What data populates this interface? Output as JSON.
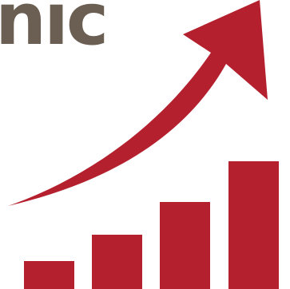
{
  "logo": {
    "text_fragment": "nic",
    "text_color": "#6b5f53"
  },
  "growth_graphic": {
    "accent_color": "#b4202e",
    "arrow_icon": "upward-trend-arrow-icon",
    "bar_levels": [
      0.18,
      0.35,
      0.56,
      0.82
    ]
  }
}
